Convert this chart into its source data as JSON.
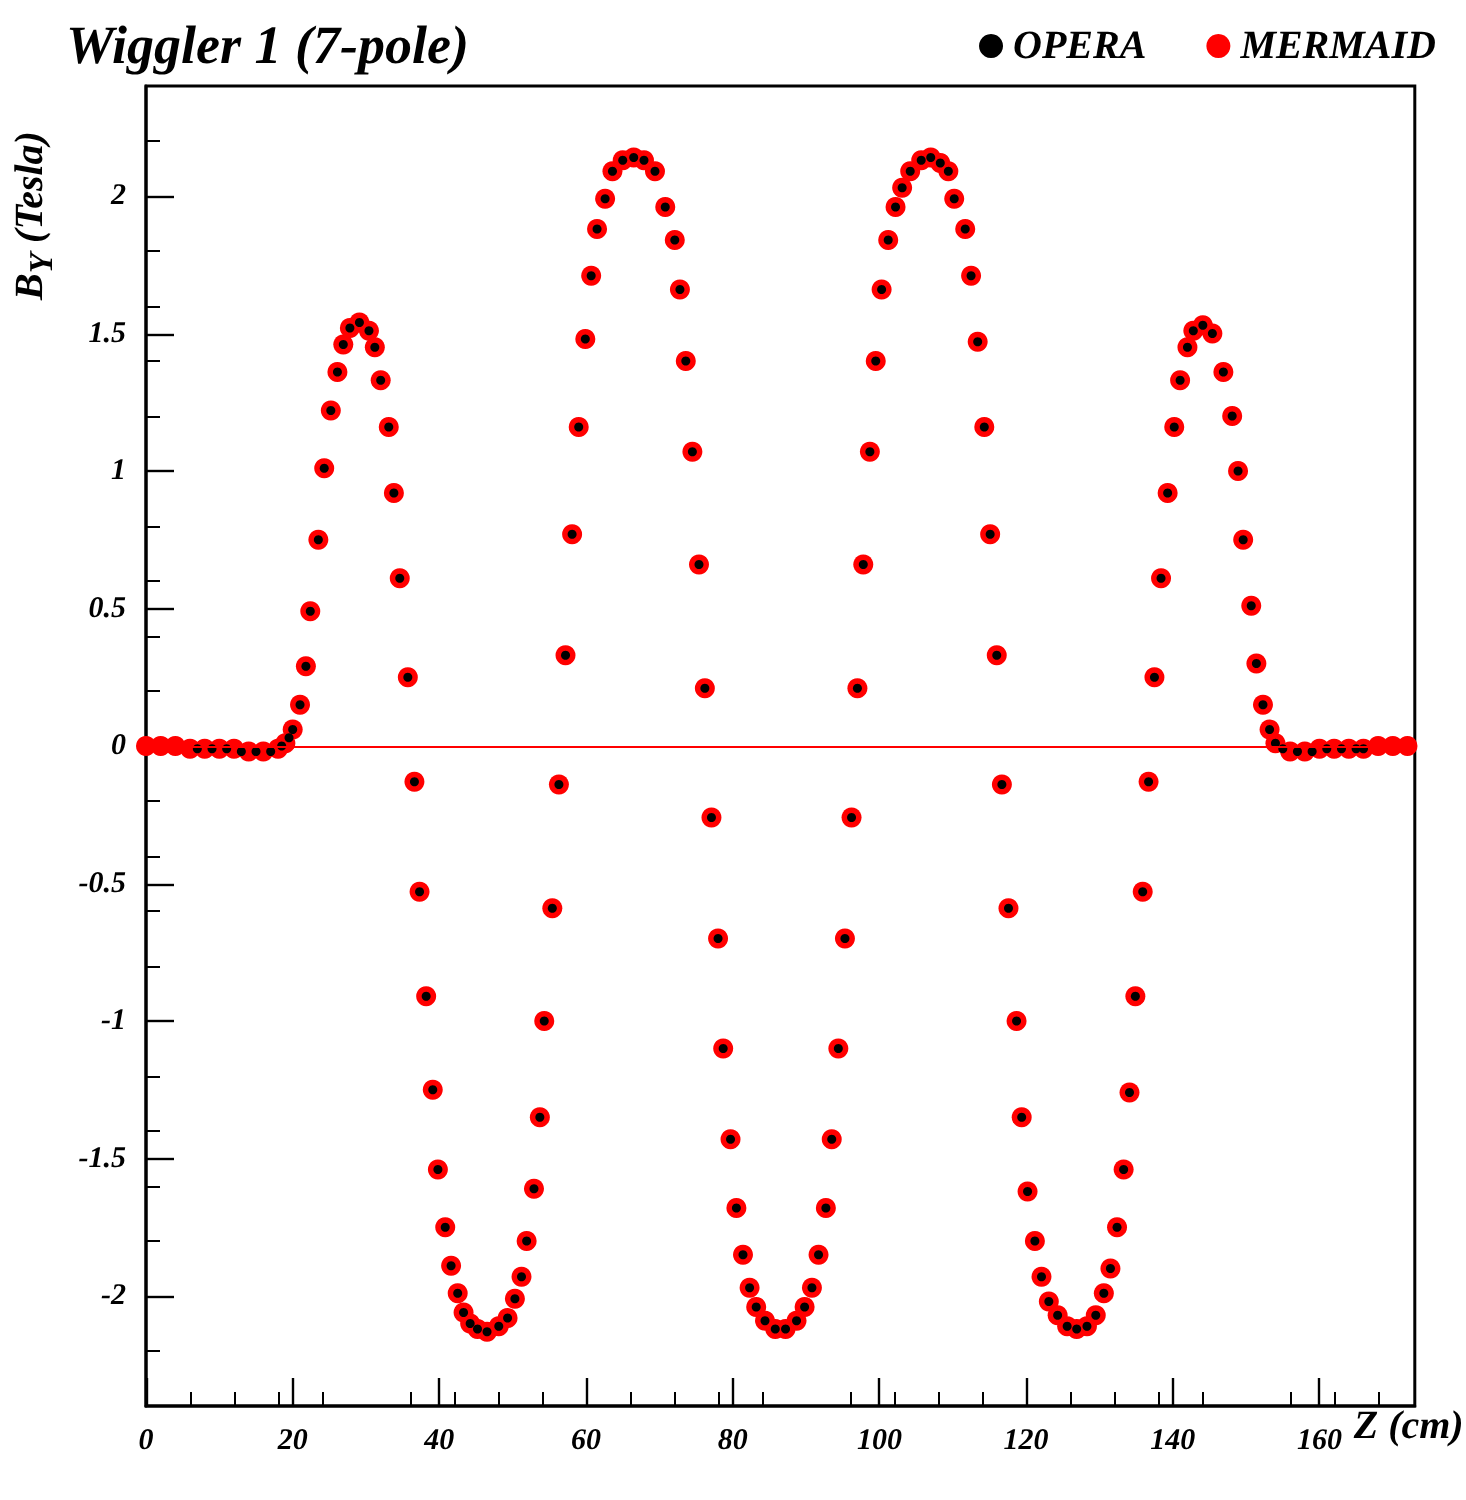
{
  "chart_data": {
    "type": "scatter",
    "title": "Wiggler 1 (7-pole)",
    "xlabel": "Z (cm)",
    "ylabel": "B$_{Y}$ (Tesla)",
    "xlim": [
      0,
      173
    ],
    "xticks": [
      0,
      20,
      40,
      60,
      80,
      100,
      120,
      140,
      160
    ],
    "ylim": [
      -2.4,
      2.4
    ],
    "yticks": [
      -2,
      -1.5,
      -1,
      -0.5,
      0,
      0.5,
      1,
      1.5,
      2
    ],
    "grid": false,
    "legend": "top right",
    "marker": "circle",
    "ref_lines": [
      {
        "axis": "y",
        "value": 0,
        "color": "#ff0000",
        "line_style": "solid"
      }
    ],
    "series": [
      {
        "name": "MERMAID",
        "color": "#ff0000",
        "x": [
          0,
          2,
          4,
          6,
          8,
          10,
          12,
          14,
          16,
          18,
          19,
          20,
          21,
          21.8,
          22.4,
          23.5,
          24.3,
          25.2,
          26.1,
          26.9,
          27.8,
          29.1,
          30.4,
          31.2,
          32,
          33.1,
          33.8,
          34.6,
          35.7,
          36.6,
          37.3,
          38.2,
          39.1,
          39.8,
          40.8,
          41.6,
          42.5,
          43.3,
          44.2,
          45.2,
          46.5,
          48.1,
          49.3,
          50.3,
          51.2,
          51.9,
          52.9,
          53.7,
          54.3,
          55.4,
          56.3,
          57.2,
          58.1,
          59,
          59.9,
          60.7,
          61.5,
          62.6,
          63.6,
          65,
          66.5,
          67.9,
          69.4,
          70.8,
          72.1,
          72.8,
          73.6,
          74.5,
          75.4,
          76.2,
          77.1,
          78,
          78.7,
          79.7,
          80.5,
          81.4,
          82.3,
          83.2,
          84.4,
          85.8,
          87.2,
          88.7,
          89.8,
          90.8,
          91.7,
          92.7,
          93.5,
          94.4,
          95.3,
          96.2,
          97,
          97.8,
          98.7,
          99.5,
          100.3,
          101.2,
          102.2,
          103.1,
          104.2,
          105.7,
          107,
          108.3,
          109.4,
          110.2,
          111.7,
          112.5,
          113.4,
          114.3,
          115.1,
          116,
          116.7,
          117.6,
          118.7,
          119.4,
          120.2,
          121.2,
          122.1,
          123.1,
          124.3,
          125.6,
          126.9,
          128.3,
          129.5,
          130.6,
          131.5,
          132.4,
          133.3,
          134.1,
          134.9,
          135.9,
          136.7,
          137.5,
          138.4,
          139.3,
          140.2,
          141,
          142,
          142.8,
          144.1,
          145.4,
          146.9,
          148.1,
          148.9,
          149.6,
          150.7,
          151.4,
          152.3,
          153.2,
          154,
          156,
          158,
          160,
          162,
          164,
          166,
          168,
          170,
          172
        ],
        "values": [
          0,
          0,
          0,
          -0.01,
          -0.01,
          -0.01,
          -0.01,
          -0.02,
          -0.02,
          -0.01,
          0.01,
          0.06,
          0.15,
          0.29,
          0.49,
          0.75,
          1.01,
          1.22,
          1.36,
          1.46,
          1.52,
          1.54,
          1.51,
          1.45,
          1.33,
          1.16,
          0.92,
          0.61,
          0.25,
          -0.13,
          -0.53,
          -0.91,
          -1.25,
          -1.54,
          -1.75,
          -1.89,
          -1.99,
          -2.06,
          -2.1,
          -2.12,
          -2.13,
          -2.11,
          -2.08,
          -2.01,
          -1.93,
          -1.8,
          -1.61,
          -1.35,
          -1,
          -0.59,
          -0.14,
          0.33,
          0.77,
          1.16,
          1.48,
          1.71,
          1.88,
          1.99,
          2.09,
          2.13,
          2.14,
          2.13,
          2.09,
          1.96,
          1.84,
          1.66,
          1.4,
          1.07,
          0.66,
          0.21,
          -0.26,
          -0.7,
          -1.1,
          -1.43,
          -1.68,
          -1.85,
          -1.97,
          -2.04,
          -2.09,
          -2.12,
          -2.12,
          -2.09,
          -2.04,
          -1.97,
          -1.85,
          -1.68,
          -1.43,
          -1.1,
          -0.7,
          -0.26,
          0.21,
          0.66,
          1.07,
          1.4,
          1.66,
          1.84,
          1.96,
          2.03,
          2.09,
          2.13,
          2.14,
          2.12,
          2.09,
          1.99,
          1.88,
          1.71,
          1.47,
          1.16,
          0.77,
          0.33,
          -0.14,
          -0.59,
          -1,
          -1.35,
          -1.62,
          -1.8,
          -1.93,
          -2.02,
          -2.07,
          -2.11,
          -2.12,
          -2.11,
          -2.07,
          -1.99,
          -1.9,
          -1.75,
          -1.54,
          -1.26,
          -0.91,
          -0.53,
          -0.13,
          0.25,
          0.61,
          0.92,
          1.16,
          1.33,
          1.45,
          1.51,
          1.53,
          1.5,
          1.36,
          1.2,
          1,
          0.75,
          0.51,
          0.3,
          0.15,
          0.06,
          0.01,
          -0.02,
          -0.02,
          -0.01,
          -0.01,
          -0.01,
          -0.01,
          0,
          0,
          0
        ]
      },
      {
        "name": "OPERA",
        "color": "#000000",
        "x": [
          7,
          9,
          11,
          13,
          15,
          17,
          18.5,
          19.5,
          20,
          21,
          21.8,
          22.4,
          23.5,
          24.3,
          25.2,
          26.1,
          26.9,
          27.8,
          29.1,
          30.4,
          31.2,
          32,
          33.1,
          33.8,
          34.6,
          35.7,
          36.6,
          37.3,
          38.2,
          39.1,
          39.8,
          40.8,
          41.6,
          42.5,
          43.3,
          44.2,
          45.2,
          46.5,
          48.1,
          49.3,
          50.3,
          51.2,
          51.9,
          52.9,
          53.7,
          54.3,
          55.4,
          56.3,
          57.2,
          58.1,
          59,
          59.9,
          60.7,
          61.5,
          62.6,
          63.6,
          65,
          66.5,
          67.9,
          69.4,
          70.8,
          72.1,
          72.8,
          73.6,
          74.5,
          75.4,
          76.2,
          77.1,
          78,
          78.7,
          79.7,
          80.5,
          81.4,
          82.3,
          83.2,
          84.4,
          85.8,
          87.2,
          88.7,
          89.8,
          90.8,
          91.7,
          92.7,
          93.5,
          94.4,
          95.3,
          96.2,
          97,
          97.8,
          98.7,
          99.5,
          100.3,
          101.2,
          102.2,
          103.1,
          104.2,
          105.7,
          107,
          108.3,
          109.4,
          110.2,
          111.7,
          112.5,
          113.4,
          114.3,
          115.1,
          116,
          116.7,
          117.6,
          118.7,
          119.4,
          120.2,
          121.2,
          122.1,
          123.1,
          124.3,
          125.6,
          126.9,
          128.3,
          129.5,
          130.6,
          131.5,
          132.4,
          133.3,
          134.1,
          134.9,
          135.9,
          136.7,
          137.5,
          138.4,
          139.3,
          140.2,
          141,
          142,
          142.8,
          144.1,
          145.4,
          146.9,
          148.1,
          148.9,
          149.6,
          150.7,
          151.4,
          152.3,
          153.2,
          154,
          155,
          157,
          159,
          161,
          163,
          165,
          166
        ],
        "values": [
          -0.01,
          -0.01,
          -0.01,
          -0.02,
          -0.02,
          -0.02,
          0,
          0.03,
          0.06,
          0.15,
          0.29,
          0.49,
          0.75,
          1.01,
          1.22,
          1.36,
          1.46,
          1.52,
          1.54,
          1.51,
          1.45,
          1.33,
          1.16,
          0.92,
          0.61,
          0.25,
          -0.13,
          -0.53,
          -0.91,
          -1.25,
          -1.54,
          -1.75,
          -1.89,
          -1.99,
          -2.06,
          -2.1,
          -2.12,
          -2.13,
          -2.11,
          -2.08,
          -2.01,
          -1.93,
          -1.8,
          -1.61,
          -1.35,
          -1,
          -0.59,
          -0.14,
          0.33,
          0.77,
          1.16,
          1.48,
          1.71,
          1.88,
          1.99,
          2.09,
          2.13,
          2.14,
          2.13,
          2.09,
          1.96,
          1.84,
          1.66,
          1.4,
          1.07,
          0.66,
          0.21,
          -0.26,
          -0.7,
          -1.1,
          -1.43,
          -1.68,
          -1.85,
          -1.97,
          -2.04,
          -2.09,
          -2.12,
          -2.12,
          -2.09,
          -2.04,
          -1.97,
          -1.85,
          -1.68,
          -1.43,
          -1.1,
          -0.7,
          -0.26,
          0.21,
          0.66,
          1.07,
          1.4,
          1.66,
          1.84,
          1.96,
          2.03,
          2.09,
          2.13,
          2.14,
          2.12,
          2.09,
          1.99,
          1.88,
          1.71,
          1.47,
          1.16,
          0.77,
          0.33,
          -0.14,
          -0.59,
          -1,
          -1.35,
          -1.62,
          -1.8,
          -1.93,
          -2.02,
          -2.07,
          -2.11,
          -2.12,
          -2.11,
          -2.07,
          -1.99,
          -1.9,
          -1.75,
          -1.54,
          -1.26,
          -0.91,
          -0.53,
          -0.13,
          0.25,
          0.61,
          0.92,
          1.16,
          1.33,
          1.45,
          1.51,
          1.53,
          1.5,
          1.36,
          1.2,
          1,
          0.75,
          0.51,
          0.3,
          0.15,
          0.06,
          0.01,
          -0.01,
          -0.02,
          -0.02,
          -0.01,
          -0.01,
          -0.01,
          -0.01
        ]
      }
    ]
  }
}
